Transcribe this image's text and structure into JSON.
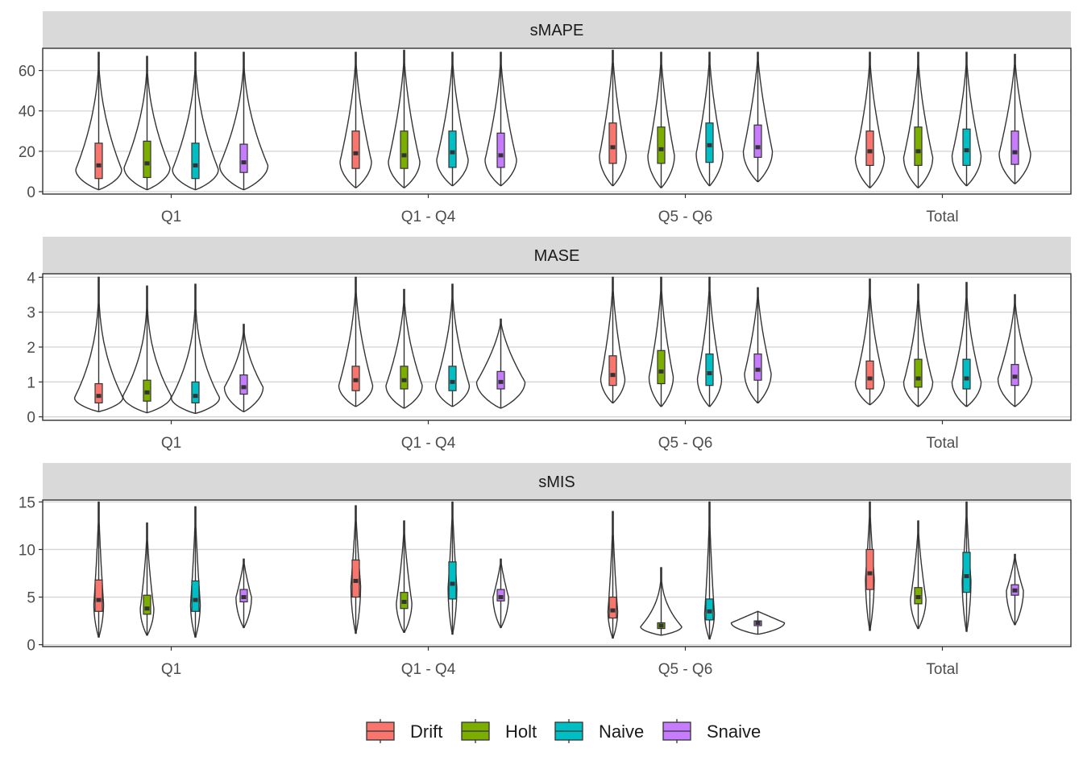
{
  "chart_data": {
    "type": "violin",
    "legend": {
      "position": "bottom",
      "entries": [
        {
          "name": "Drift",
          "color": "#F8766D"
        },
        {
          "name": "Holt",
          "color": "#7CAE00"
        },
        {
          "name": "Naive",
          "color": "#00BFC4"
        },
        {
          "name": "Snaive",
          "color": "#C77CFF"
        }
      ]
    },
    "grid": true,
    "panels": [
      {
        "title": "sMAPE",
        "ylim": [
          -1.2,
          71
        ],
        "yticks": [
          0,
          20,
          40,
          60
        ],
        "categories": [
          "Q1",
          "Q1 - Q4",
          "Q5 - Q6",
          "Total"
        ],
        "groups": [
          {
            "category": "Q1",
            "series": [
              {
                "name": "Drift",
                "min": 1,
                "max": 69,
                "q1": 6.5,
                "median": 13,
                "q3": 24,
                "mode": 11,
                "width": 0.95,
                "skew": 2
              },
              {
                "name": "Holt",
                "min": 1,
                "max": 67,
                "q1": 7,
                "median": 14,
                "q3": 25,
                "mode": 12,
                "width": 0.95,
                "skew": 2
              },
              {
                "name": "Naive",
                "min": 1,
                "max": 69,
                "q1": 6.5,
                "median": 13,
                "q3": 24,
                "mode": 11,
                "width": 0.95,
                "skew": 2
              },
              {
                "name": "Snaive",
                "min": 1,
                "max": 69,
                "q1": 9.5,
                "median": 14.5,
                "q3": 23.5,
                "mode": 13,
                "width": 1.0,
                "skew": 2
              }
            ]
          },
          {
            "category": "Q1 - Q4",
            "series": [
              {
                "name": "Drift",
                "min": 2,
                "max": 69,
                "q1": 11.5,
                "median": 19,
                "q3": 30,
                "mode": 15,
                "width": 0.65,
                "skew": 1.6
              },
              {
                "name": "Holt",
                "min": 2,
                "max": 70,
                "q1": 11.5,
                "median": 18,
                "q3": 30,
                "mode": 15,
                "width": 0.65,
                "skew": 1.6
              },
              {
                "name": "Naive",
                "min": 3,
                "max": 69,
                "q1": 12,
                "median": 19.5,
                "q3": 30,
                "mode": 16,
                "width": 0.65,
                "skew": 1.6
              },
              {
                "name": "Snaive",
                "min": 3,
                "max": 69,
                "q1": 12,
                "median": 18,
                "q3": 29,
                "mode": 16,
                "width": 0.65,
                "skew": 1.6
              }
            ]
          },
          {
            "category": "Q5 - Q6",
            "series": [
              {
                "name": "Drift",
                "min": 3,
                "max": 70,
                "q1": 14,
                "median": 22,
                "q3": 34,
                "mode": 18,
                "width": 0.55,
                "skew": 1.5
              },
              {
                "name": "Holt",
                "min": 2,
                "max": 69,
                "q1": 14,
                "median": 21,
                "q3": 32,
                "mode": 18,
                "width": 0.55,
                "skew": 1.5
              },
              {
                "name": "Naive",
                "min": 3,
                "max": 69,
                "q1": 14.5,
                "median": 23,
                "q3": 34,
                "mode": 19,
                "width": 0.55,
                "skew": 1.5
              },
              {
                "name": "Snaive",
                "min": 5,
                "max": 69,
                "q1": 17,
                "median": 22,
                "q3": 33,
                "mode": 20,
                "width": 0.6,
                "skew": 1.4
              }
            ]
          },
          {
            "category": "Total",
            "series": [
              {
                "name": "Drift",
                "min": 2,
                "max": 69,
                "q1": 13,
                "median": 20,
                "q3": 30,
                "mode": 17,
                "width": 0.6,
                "skew": 1.6
              },
              {
                "name": "Holt",
                "min": 2,
                "max": 69,
                "q1": 13,
                "median": 20,
                "q3": 32,
                "mode": 17,
                "width": 0.6,
                "skew": 1.6
              },
              {
                "name": "Naive",
                "min": 3,
                "max": 69,
                "q1": 13,
                "median": 20.5,
                "q3": 31,
                "mode": 18,
                "width": 0.6,
                "skew": 1.6
              },
              {
                "name": "Snaive",
                "min": 4,
                "max": 68,
                "q1": 13.5,
                "median": 19.5,
                "q3": 30,
                "mode": 19,
                "width": 0.65,
                "skew": 1.5
              }
            ]
          }
        ]
      },
      {
        "title": "MASE",
        "ylim": [
          -0.1,
          4.1
        ],
        "yticks": [
          0,
          1,
          2,
          3,
          4
        ],
        "categories": [
          "Q1",
          "Q1 - Q4",
          "Q5 - Q6",
          "Total"
        ],
        "groups": [
          {
            "category": "Q1",
            "series": [
              {
                "name": "Drift",
                "min": 0.15,
                "max": 4.0,
                "q1": 0.4,
                "median": 0.6,
                "q3": 0.95,
                "mode": 0.55,
                "width": 1.0,
                "skew": 2.5
              },
              {
                "name": "Holt",
                "min": 0.12,
                "max": 3.75,
                "q1": 0.45,
                "median": 0.7,
                "q3": 1.05,
                "mode": 0.6,
                "width": 1.0,
                "skew": 2.5
              },
              {
                "name": "Naive",
                "min": 0.1,
                "max": 3.8,
                "q1": 0.4,
                "median": 0.6,
                "q3": 1.0,
                "mode": 0.55,
                "width": 1.0,
                "skew": 2.5
              },
              {
                "name": "Snaive",
                "min": 0.15,
                "max": 2.65,
                "q1": 0.65,
                "median": 0.85,
                "q3": 1.2,
                "mode": 0.85,
                "width": 0.8,
                "skew": 1.8
              }
            ]
          },
          {
            "category": "Q1 - Q4",
            "series": [
              {
                "name": "Drift",
                "min": 0.3,
                "max": 4.0,
                "q1": 0.75,
                "median": 1.05,
                "q3": 1.45,
                "mode": 0.9,
                "width": 0.7,
                "skew": 1.8
              },
              {
                "name": "Holt",
                "min": 0.25,
                "max": 3.65,
                "q1": 0.8,
                "median": 1.05,
                "q3": 1.45,
                "mode": 0.9,
                "width": 0.75,
                "skew": 1.8
              },
              {
                "name": "Naive",
                "min": 0.3,
                "max": 3.8,
                "q1": 0.75,
                "median": 1.0,
                "q3": 1.45,
                "mode": 0.9,
                "width": 0.7,
                "skew": 1.8
              },
              {
                "name": "Snaive",
                "min": 0.25,
                "max": 2.8,
                "q1": 0.8,
                "median": 1.0,
                "q3": 1.3,
                "mode": 1.0,
                "width": 1.0,
                "skew": 1.5
              }
            ]
          },
          {
            "category": "Q5 - Q6",
            "series": [
              {
                "name": "Drift",
                "min": 0.4,
                "max": 4.0,
                "q1": 0.9,
                "median": 1.2,
                "q3": 1.75,
                "mode": 1.1,
                "width": 0.5,
                "skew": 1.6
              },
              {
                "name": "Holt",
                "min": 0.3,
                "max": 4.0,
                "q1": 0.95,
                "median": 1.3,
                "q3": 1.9,
                "mode": 1.15,
                "width": 0.5,
                "skew": 1.6
              },
              {
                "name": "Naive",
                "min": 0.3,
                "max": 4.0,
                "q1": 0.9,
                "median": 1.25,
                "q3": 1.8,
                "mode": 1.1,
                "width": 0.5,
                "skew": 1.6
              },
              {
                "name": "Snaive",
                "min": 0.4,
                "max": 3.7,
                "q1": 1.05,
                "median": 1.35,
                "q3": 1.8,
                "mode": 1.25,
                "width": 0.55,
                "skew": 1.5
              }
            ]
          },
          {
            "category": "Total",
            "series": [
              {
                "name": "Drift",
                "min": 0.35,
                "max": 3.95,
                "q1": 0.8,
                "median": 1.1,
                "q3": 1.6,
                "mode": 1.0,
                "width": 0.6,
                "skew": 1.8
              },
              {
                "name": "Holt",
                "min": 0.3,
                "max": 3.8,
                "q1": 0.85,
                "median": 1.1,
                "q3": 1.65,
                "mode": 1.0,
                "width": 0.6,
                "skew": 1.8
              },
              {
                "name": "Naive",
                "min": 0.3,
                "max": 3.85,
                "q1": 0.8,
                "median": 1.1,
                "q3": 1.65,
                "mode": 1.0,
                "width": 0.6,
                "skew": 1.8
              },
              {
                "name": "Snaive",
                "min": 0.3,
                "max": 3.5,
                "q1": 0.9,
                "median": 1.15,
                "q3": 1.5,
                "mode": 1.1,
                "width": 0.7,
                "skew": 1.6
              }
            ]
          }
        ]
      },
      {
        "title": "sMIS",
        "ylim": [
          -0.2,
          15.2
        ],
        "yticks": [
          0,
          5,
          10,
          15
        ],
        "categories": [
          "Q1",
          "Q1 - Q4",
          "Q5 - Q6",
          "Total"
        ],
        "groups": [
          {
            "category": "Q1",
            "series": [
              {
                "name": "Drift",
                "min": 0.8,
                "max": 15,
                "q1": 3.5,
                "median": 4.7,
                "q3": 6.8,
                "mode": 4.3,
                "width": 0.2,
                "skew": 1.4
              },
              {
                "name": "Holt",
                "min": 1.0,
                "max": 12.8,
                "q1": 3.2,
                "median": 3.8,
                "q3": 5.2,
                "mode": 3.8,
                "width": 0.28,
                "skew": 1.6
              },
              {
                "name": "Naive",
                "min": 0.8,
                "max": 14.5,
                "q1": 3.5,
                "median": 4.7,
                "q3": 6.7,
                "mode": 4.3,
                "width": 0.2,
                "skew": 1.4
              },
              {
                "name": "Snaive",
                "min": 1.8,
                "max": 9.0,
                "q1": 4.5,
                "median": 5.0,
                "q3": 5.8,
                "mode": 5.0,
                "width": 0.32,
                "skew": 1.3
              }
            ]
          },
          {
            "category": "Q1 - Q4",
            "series": [
              {
                "name": "Drift",
                "min": 1.2,
                "max": 14.6,
                "q1": 5.0,
                "median": 6.7,
                "q3": 8.9,
                "mode": 6.2,
                "width": 0.2,
                "skew": 1.3
              },
              {
                "name": "Holt",
                "min": 1.3,
                "max": 13.0,
                "q1": 3.8,
                "median": 4.5,
                "q3": 5.5,
                "mode": 4.4,
                "width": 0.32,
                "skew": 1.5
              },
              {
                "name": "Naive",
                "min": 1.1,
                "max": 15,
                "q1": 4.8,
                "median": 6.4,
                "q3": 8.7,
                "mode": 6.0,
                "width": 0.18,
                "skew": 1.3
              },
              {
                "name": "Snaive",
                "min": 1.8,
                "max": 9.0,
                "q1": 4.6,
                "median": 5.0,
                "q3": 5.8,
                "mode": 5.0,
                "width": 0.32,
                "skew": 1.3
              }
            ]
          },
          {
            "category": "Q5 - Q6",
            "series": [
              {
                "name": "Drift",
                "min": 0.7,
                "max": 14.0,
                "q1": 2.8,
                "median": 3.6,
                "q3": 5.0,
                "mode": 3.5,
                "width": 0.2,
                "skew": 1.5
              },
              {
                "name": "Holt",
                "min": 1.0,
                "max": 8.1,
                "q1": 1.7,
                "median": 2.0,
                "q3": 2.3,
                "mode": 1.9,
                "width": 0.85,
                "skew": 2.5
              },
              {
                "name": "Naive",
                "min": 0.6,
                "max": 15,
                "q1": 2.6,
                "median": 3.5,
                "q3": 4.8,
                "mode": 3.3,
                "width": 0.2,
                "skew": 1.5
              },
              {
                "name": "Snaive",
                "min": 1.1,
                "max": 3.5,
                "q1": 2.0,
                "median": 2.3,
                "q3": 2.5,
                "mode": 2.3,
                "width": 1.1,
                "skew": 1.0
              }
            ]
          },
          {
            "category": "Total",
            "series": [
              {
                "name": "Drift",
                "min": 1.5,
                "max": 15,
                "q1": 5.8,
                "median": 7.5,
                "q3": 10.0,
                "mode": 7.0,
                "width": 0.18,
                "skew": 1.3
              },
              {
                "name": "Holt",
                "min": 1.7,
                "max": 13.0,
                "q1": 4.3,
                "median": 5.0,
                "q3": 6.0,
                "mode": 4.8,
                "width": 0.32,
                "skew": 1.5
              },
              {
                "name": "Naive",
                "min": 1.4,
                "max": 15,
                "q1": 5.5,
                "median": 7.2,
                "q3": 9.7,
                "mode": 6.8,
                "width": 0.18,
                "skew": 1.3
              },
              {
                "name": "Snaive",
                "min": 2.1,
                "max": 9.5,
                "q1": 5.2,
                "median": 5.7,
                "q3": 6.3,
                "mode": 5.7,
                "width": 0.35,
                "skew": 1.3
              }
            ]
          }
        ]
      }
    ]
  }
}
